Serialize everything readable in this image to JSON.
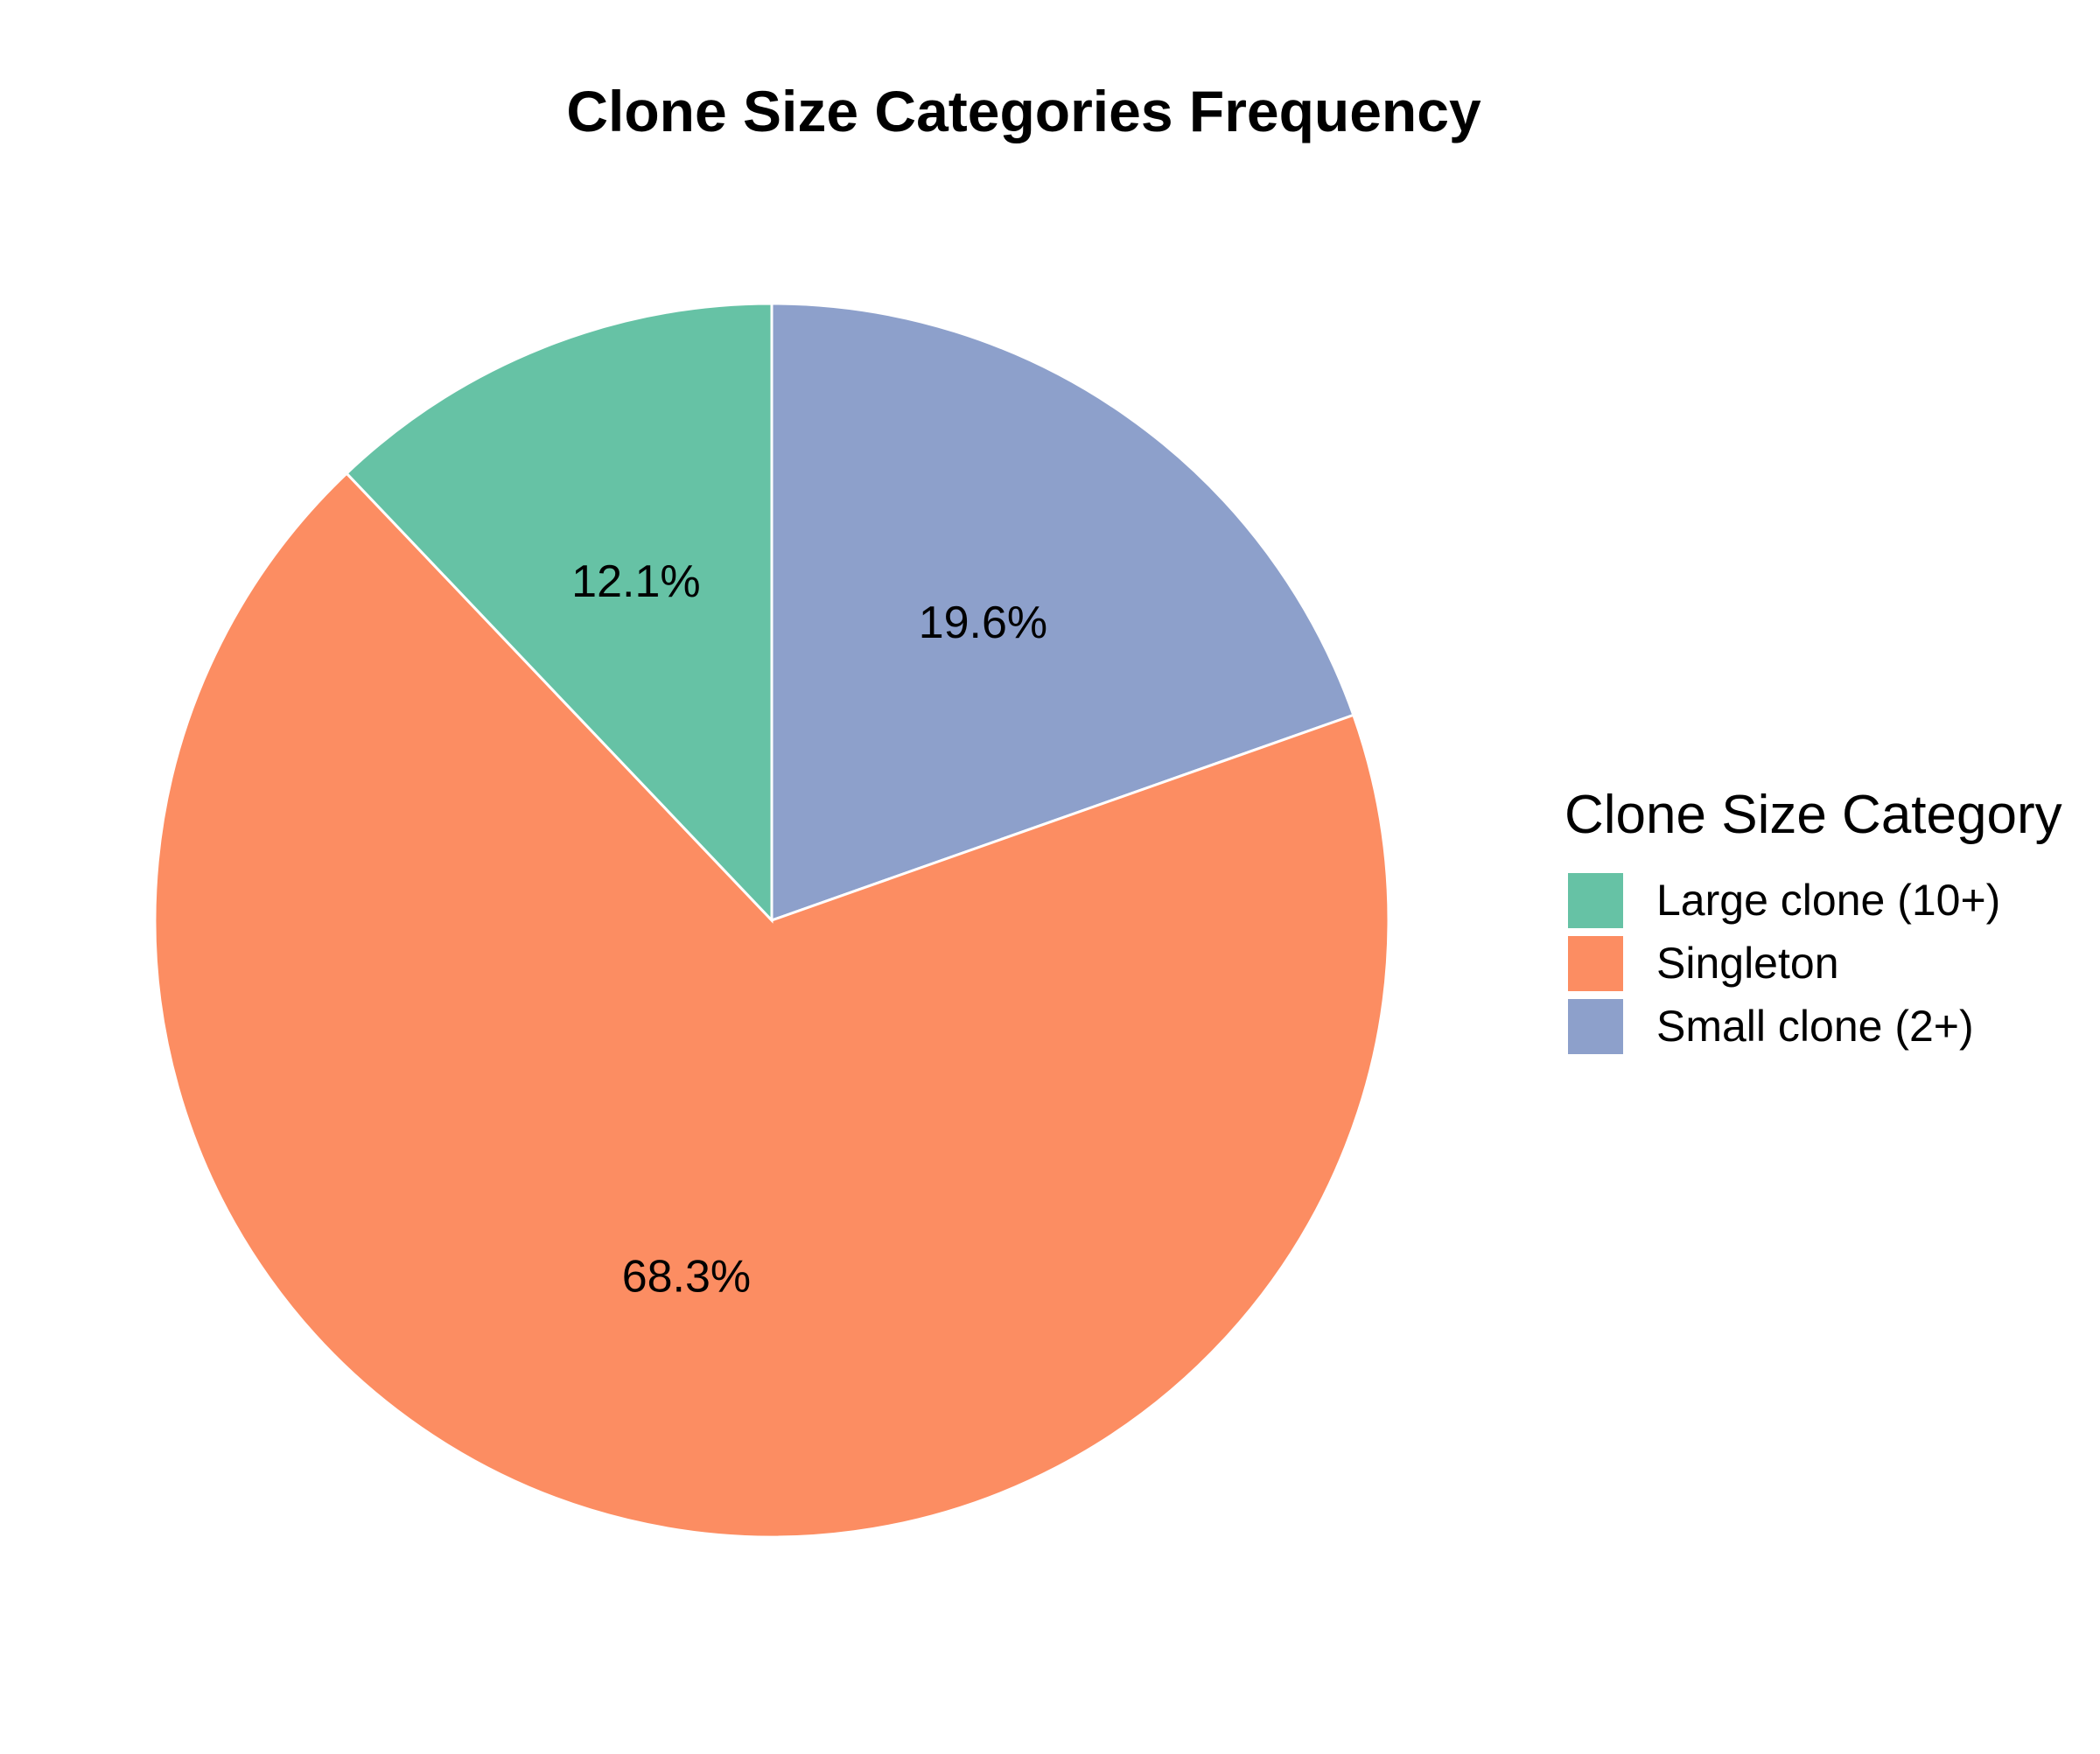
{
  "chart_data": {
    "type": "pie",
    "title": "Clone Size Categories Frequency",
    "legend": {
      "title": "Clone Size Category",
      "placement": "right"
    },
    "start_angle_deg": 0,
    "direction": "clockwise",
    "slices": [
      {
        "label": "Small clone (2+)",
        "value": 19.6,
        "percent_label": "19.6%",
        "color": "#8DA0CB"
      },
      {
        "label": "Singleton",
        "value": 68.3,
        "percent_label": "68.3%",
        "color": "#FC8D62"
      },
      {
        "label": "Large clone (10+)",
        "value": 12.1,
        "percent_label": "12.1%",
        "color": "#66C2A5"
      }
    ],
    "legend_order": [
      "Large clone (10+)",
      "Singleton",
      "Small clone (2+)"
    ]
  }
}
